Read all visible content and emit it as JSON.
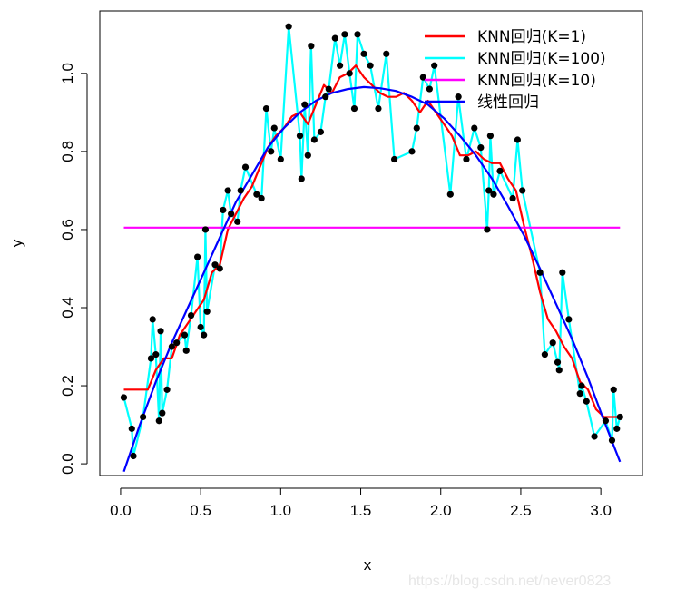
{
  "chart_data": {
    "type": "scatter",
    "title": "",
    "xlabel": "x",
    "ylabel": "y",
    "xlim": [
      -0.13,
      3.26
    ],
    "ylim": [
      -0.03,
      1.16
    ],
    "xticks": [
      0.0,
      0.5,
      1.0,
      1.5,
      2.0,
      2.5,
      3.0
    ],
    "xtick_labels": [
      "0.0",
      "0.5",
      "1.0",
      "1.5",
      "2.0",
      "2.5",
      "3.0"
    ],
    "yticks": [
      0.0,
      0.2,
      0.4,
      0.6,
      0.8,
      1.0
    ],
    "ytick_labels": [
      "0.0",
      "0.2",
      "0.4",
      "0.6",
      "0.8",
      "1.0"
    ],
    "legend_position": "top-right",
    "colors": {
      "points": "#000000",
      "knn1": "#ff0000",
      "knn100": "#00ffff",
      "knn10": "#ff00ff",
      "linear": "#0000ff"
    },
    "points": {
      "x": [
        0.02,
        0.07,
        0.08,
        0.14,
        0.19,
        0.2,
        0.22,
        0.24,
        0.25,
        0.26,
        0.29,
        0.32,
        0.35,
        0.4,
        0.41,
        0.44,
        0.48,
        0.5,
        0.52,
        0.53,
        0.54,
        0.59,
        0.62,
        0.64,
        0.67,
        0.69,
        0.73,
        0.75,
        0.78,
        0.85,
        0.88,
        0.91,
        0.94,
        0.96,
        1.0,
        1.05,
        1.12,
        1.13,
        1.15,
        1.17,
        1.19,
        1.21,
        1.25,
        1.28,
        1.3,
        1.34,
        1.37,
        1.4,
        1.43,
        1.46,
        1.48,
        1.52,
        1.56,
        1.61,
        1.66,
        1.71,
        1.82,
        1.85,
        1.89,
        1.93,
        1.96,
        2.06,
        2.11,
        2.16,
        2.21,
        2.25,
        2.29,
        2.3,
        2.31,
        2.33,
        2.37,
        2.45,
        2.48,
        2.51,
        2.62,
        2.65,
        2.7,
        2.73,
        2.74,
        2.76,
        2.8,
        2.87,
        2.88,
        2.91,
        2.96,
        3.03,
        3.07,
        3.08,
        3.1,
        3.12
      ],
      "y": [
        0.17,
        0.09,
        0.02,
        0.12,
        0.27,
        0.37,
        0.28,
        0.11,
        0.34,
        0.13,
        0.19,
        0.3,
        0.31,
        0.33,
        0.29,
        0.38,
        0.53,
        0.35,
        0.33,
        0.6,
        0.39,
        0.51,
        0.5,
        0.65,
        0.7,
        0.64,
        0.62,
        0.7,
        0.76,
        0.69,
        0.68,
        0.91,
        0.8,
        0.86,
        0.78,
        1.12,
        0.84,
        0.73,
        0.92,
        0.79,
        1.07,
        0.83,
        0.85,
        0.94,
        0.96,
        1.09,
        1.02,
        1.1,
        1.0,
        0.91,
        1.1,
        1.05,
        1.02,
        0.91,
        1.05,
        0.78,
        0.8,
        0.86,
        0.99,
        0.96,
        1.02,
        0.69,
        0.94,
        0.78,
        0.86,
        0.81,
        0.6,
        0.7,
        0.84,
        0.69,
        0.75,
        0.68,
        0.83,
        0.7,
        0.49,
        0.28,
        0.31,
        0.26,
        0.24,
        0.49,
        0.37,
        0.18,
        0.2,
        0.16,
        0.07,
        0.11,
        0.06,
        0.19,
        0.09,
        0.12
      ]
    },
    "series": [
      {
        "name": "KNN回归(K=1)",
        "color": "#ff0000",
        "x": [
          0.02,
          0.17,
          0.22,
          0.27,
          0.32,
          0.37,
          0.42,
          0.47,
          0.52,
          0.57,
          0.62,
          0.67,
          0.72,
          0.77,
          0.82,
          0.87,
          0.92,
          0.97,
          1.02,
          1.07,
          1.12,
          1.17,
          1.22,
          1.27,
          1.32,
          1.37,
          1.42,
          1.47,
          1.52,
          1.57,
          1.62,
          1.67,
          1.72,
          1.77,
          1.82,
          1.87,
          1.92,
          1.97,
          2.02,
          2.07,
          2.12,
          2.17,
          2.22,
          2.27,
          2.32,
          2.37,
          2.42,
          2.47,
          2.52,
          2.57,
          2.62,
          2.67,
          2.72,
          2.77,
          2.82,
          2.87,
          2.92,
          2.97,
          3.02,
          3.07,
          3.12
        ],
        "y": [
          0.19,
          0.19,
          0.24,
          0.27,
          0.27,
          0.33,
          0.36,
          0.39,
          0.42,
          0.49,
          0.51,
          0.6,
          0.64,
          0.68,
          0.71,
          0.76,
          0.81,
          0.84,
          0.86,
          0.89,
          0.9,
          0.87,
          0.92,
          0.97,
          0.95,
          0.99,
          1.0,
          1.02,
          0.99,
          0.97,
          0.95,
          0.94,
          0.94,
          0.95,
          0.93,
          0.9,
          0.93,
          0.9,
          0.87,
          0.84,
          0.79,
          0.79,
          0.8,
          0.78,
          0.77,
          0.77,
          0.73,
          0.7,
          0.61,
          0.53,
          0.44,
          0.37,
          0.34,
          0.3,
          0.27,
          0.21,
          0.19,
          0.14,
          0.12,
          0.12,
          0.12
        ]
      },
      {
        "name": "KNN回归(K=100)",
        "color": "#00ffff",
        "x": [
          0.02,
          0.07,
          0.08,
          0.14,
          0.19,
          0.2,
          0.22,
          0.24,
          0.25,
          0.26,
          0.29,
          0.32,
          0.35,
          0.4,
          0.41,
          0.44,
          0.48,
          0.5,
          0.52,
          0.53,
          0.54,
          0.59,
          0.62,
          0.64,
          0.67,
          0.69,
          0.73,
          0.75,
          0.78,
          0.85,
          0.88,
          0.91,
          0.94,
          0.96,
          1.0,
          1.05,
          1.12,
          1.13,
          1.15,
          1.17,
          1.19,
          1.21,
          1.25,
          1.28,
          1.3,
          1.34,
          1.37,
          1.4,
          1.43,
          1.46,
          1.48,
          1.52,
          1.56,
          1.61,
          1.66,
          1.71,
          1.82,
          1.85,
          1.89,
          1.93,
          1.96,
          2.06,
          2.11,
          2.16,
          2.21,
          2.25,
          2.29,
          2.3,
          2.31,
          2.33,
          2.37,
          2.45,
          2.48,
          2.51,
          2.62,
          2.65,
          2.7,
          2.73,
          2.74,
          2.76,
          2.8,
          2.87,
          2.88,
          2.91,
          2.96,
          3.03,
          3.07,
          3.08,
          3.1,
          3.12
        ],
        "y": [
          0.17,
          0.09,
          0.02,
          0.12,
          0.27,
          0.37,
          0.28,
          0.11,
          0.34,
          0.13,
          0.19,
          0.3,
          0.31,
          0.33,
          0.29,
          0.38,
          0.53,
          0.35,
          0.33,
          0.6,
          0.39,
          0.51,
          0.5,
          0.65,
          0.7,
          0.64,
          0.62,
          0.7,
          0.76,
          0.69,
          0.68,
          0.91,
          0.8,
          0.86,
          0.78,
          1.12,
          0.84,
          0.73,
          0.92,
          0.79,
          1.07,
          0.83,
          0.85,
          0.94,
          0.96,
          1.09,
          1.02,
          1.1,
          1.0,
          0.91,
          1.1,
          1.05,
          1.02,
          0.91,
          1.05,
          0.78,
          0.8,
          0.86,
          0.99,
          0.96,
          1.02,
          0.69,
          0.94,
          0.78,
          0.86,
          0.81,
          0.6,
          0.7,
          0.84,
          0.69,
          0.75,
          0.68,
          0.83,
          0.7,
          0.49,
          0.28,
          0.31,
          0.26,
          0.24,
          0.49,
          0.37,
          0.18,
          0.2,
          0.16,
          0.07,
          0.11,
          0.06,
          0.19,
          0.09,
          0.12
        ]
      },
      {
        "name": "KNN回归(K=10)",
        "color": "#ff00ff",
        "x": [
          0.02,
          3.12
        ],
        "y": [
          0.605,
          0.605
        ]
      },
      {
        "name": "线性回归",
        "color": "#0000ff",
        "x": [
          0.02,
          0.12,
          0.22,
          0.32,
          0.42,
          0.52,
          0.62,
          0.72,
          0.82,
          0.92,
          1.02,
          1.12,
          1.22,
          1.32,
          1.42,
          1.52,
          1.62,
          1.72,
          1.82,
          1.92,
          2.02,
          2.12,
          2.22,
          2.32,
          2.42,
          2.52,
          2.62,
          2.72,
          2.82,
          2.92,
          3.02,
          3.12
        ],
        "y": [
          -0.02,
          0.1,
          0.21,
          0.31,
          0.4,
          0.49,
          0.58,
          0.67,
          0.74,
          0.81,
          0.86,
          0.9,
          0.93,
          0.95,
          0.96,
          0.965,
          0.962,
          0.955,
          0.94,
          0.92,
          0.885,
          0.84,
          0.79,
          0.73,
          0.66,
          0.585,
          0.5,
          0.41,
          0.32,
          0.22,
          0.11,
          0.005
        ]
      }
    ]
  },
  "watermark": "https://blog.csdn.net/never0823"
}
